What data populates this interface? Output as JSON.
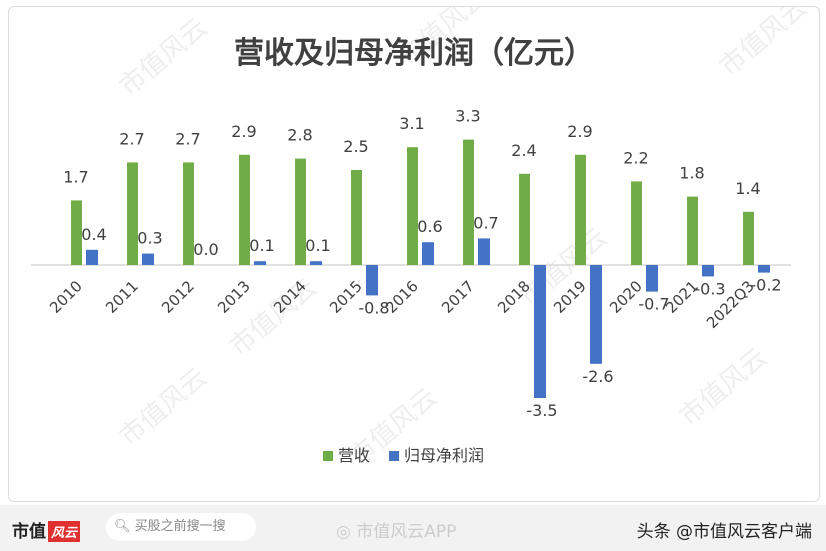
{
  "chart_data": {
    "type": "bar",
    "title": "营收及归母净利润（亿元）",
    "categories": [
      "2010",
      "2011",
      "2012",
      "2013",
      "2014",
      "2015",
      "2016",
      "2017",
      "2018",
      "2019",
      "2020",
      "2021",
      "2022Q3"
    ],
    "series": [
      {
        "name": "营收",
        "color": "#70ad47",
        "values": [
          1.7,
          2.7,
          2.7,
          2.9,
          2.8,
          2.5,
          3.1,
          3.3,
          2.4,
          2.9,
          2.2,
          1.8,
          1.4
        ]
      },
      {
        "name": "归母净利润",
        "color": "#4472c4",
        "values": [
          0.4,
          0.3,
          0.0,
          0.1,
          0.1,
          -0.8,
          0.6,
          0.7,
          -3.5,
          -2.6,
          -0.7,
          -0.3,
          -0.2
        ]
      }
    ],
    "legend": "bottom",
    "grid": false,
    "data_labels": true
  },
  "watermark": "市值风云",
  "footer": {
    "brand": "市值",
    "brand_logo": "风云",
    "search_placeholder": "买股之前搜一搜",
    "weibo": "市值风云APP",
    "toutiao": "头条 @市值风云客户端"
  }
}
